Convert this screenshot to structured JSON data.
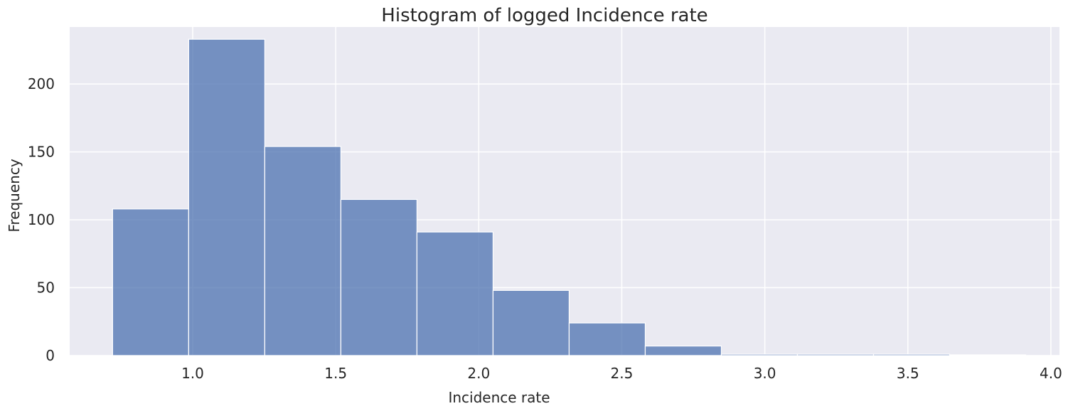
{
  "chart_data": {
    "type": "bar",
    "title": "Histogram of logged Incidence rate",
    "xlabel": "Incidence rate",
    "ylabel": "Frequency",
    "xlim": [
      0.57,
      4.03
    ],
    "ylim": [
      0,
      242
    ],
    "xticks": [
      1.0,
      1.5,
      2.0,
      2.5,
      3.0,
      3.5,
      4.0
    ],
    "xtick_labels": [
      "1.0",
      "1.5",
      "2.0",
      "2.5",
      "3.0",
      "3.5",
      "4.0"
    ],
    "yticks": [
      0,
      50,
      100,
      150,
      200
    ],
    "ytick_labels": [
      "0",
      "50",
      "100",
      "150",
      "200"
    ],
    "bin_edges": [
      0.72,
      0.986,
      1.252,
      1.518,
      1.784,
      2.05,
      2.316,
      2.582,
      2.848,
      3.114,
      3.38,
      3.646,
      3.912
    ],
    "values": [
      108,
      233,
      154,
      115,
      91,
      48,
      24,
      7,
      1,
      1,
      1,
      0.5
    ],
    "grid": true,
    "colors": {
      "bar_fill": "#4c72b0",
      "bar_edge": "#ffffff",
      "background": "#eaeaf2",
      "grid": "#ffffff",
      "text": "#262626"
    }
  }
}
